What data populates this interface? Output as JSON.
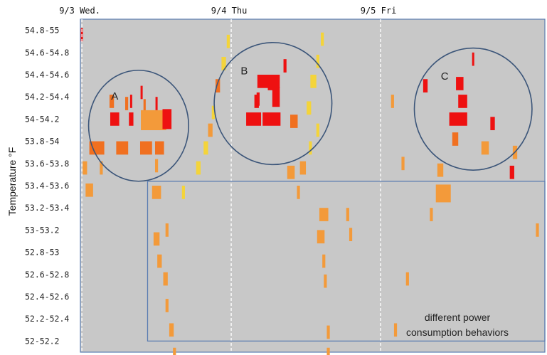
{
  "chart_data": {
    "type": "heatmap",
    "ylabel": "Temperature °F",
    "y_categories": [
      "54.8-55",
      "54.6-54.8",
      "54.4-54.6",
      "54.2-54.4",
      "54-54.2",
      "53.8-54",
      "53.6-53.8",
      "53.4-53.6",
      "53.2-53.4",
      "53-53.2",
      "52.8-53",
      "52.6-52.8",
      "52.4-52.6",
      "52.2-52.4",
      "52-52.2"
    ],
    "day_markers": [
      {
        "label": "9/3  Wed.",
        "day": 0
      },
      {
        "label": "9/4 Thu",
        "day": 1
      },
      {
        "label": "9/5 Fri",
        "day": 2
      }
    ],
    "x_range_days": [
      -0.01,
      3.1
    ],
    "colors": {
      "background": "#c8c8c8",
      "frame": "#5b7db1",
      "high": "#ee1111",
      "mid": "#f07020",
      "low": "#f39a3a",
      "faint": "#f4d43a",
      "ellipse": "#3b5579"
    },
    "clusters": [
      {
        "id": "A",
        "label": "A",
        "center_day": 0.38,
        "center_row": 4.3,
        "ry_rows": 2.5,
        "rx_days": 0.335
      },
      {
        "id": "B",
        "label": "B",
        "center_day": 1.28,
        "center_row": 3.3,
        "ry_rows": 2.75,
        "rx_days": 0.394
      },
      {
        "id": "C",
        "label": "C",
        "center_day": 2.62,
        "center_row": 3.55,
        "ry_rows": 2.75,
        "rx_days": 0.394
      }
    ],
    "annotation_box": {
      "text_line1": "different power",
      "text_line2": "consumption behaviors",
      "from_day": 0.44,
      "to_day": 3.1,
      "from_row": 7.3,
      "to_row": 14.5
    },
    "cells": [
      {
        "day": 0.0,
        "row": 0.2,
        "w": 0.006,
        "level": "high"
      },
      {
        "day": 0.33,
        "row": 3.2,
        "w": 0.01,
        "level": "high"
      },
      {
        "day": 0.4,
        "row": 2.8,
        "w": 0.008,
        "level": "high"
      },
      {
        "day": 0.5,
        "row": 3.3,
        "w": 0.012,
        "level": "high"
      },
      {
        "day": 0.2,
        "row": 3.2,
        "w": 0.03,
        "level": "mid"
      },
      {
        "day": 0.3,
        "row": 3.3,
        "w": 0.02,
        "level": "mid"
      },
      {
        "day": 0.42,
        "row": 3.4,
        "w": 0.015,
        "level": "mid"
      },
      {
        "day": 0.22,
        "row": 4.0,
        "w": 0.06,
        "level": "high"
      },
      {
        "day": 0.33,
        "row": 4.0,
        "w": 0.03,
        "level": "high"
      },
      {
        "day": 0.48,
        "row": 4.05,
        "w": 0.17,
        "rh": 0.9,
        "level": "low"
      },
      {
        "day": 0.57,
        "row": 4.0,
        "w": 0.06,
        "rh": 0.9,
        "level": "high"
      },
      {
        "day": 0.1,
        "row": 5.3,
        "w": 0.1,
        "level": "mid"
      },
      {
        "day": 0.27,
        "row": 5.3,
        "w": 0.08,
        "level": "mid"
      },
      {
        "day": 0.43,
        "row": 5.3,
        "w": 0.08,
        "level": "mid"
      },
      {
        "day": 0.52,
        "row": 5.3,
        "w": 0.06,
        "level": "mid"
      },
      {
        "day": 0.02,
        "row": 6.2,
        "w": 0.03,
        "level": "low"
      },
      {
        "day": 0.13,
        "row": 6.2,
        "w": 0.02,
        "level": "low"
      },
      {
        "day": 0.05,
        "row": 7.2,
        "w": 0.05,
        "level": "low"
      },
      {
        "day": 0.5,
        "row": 6.1,
        "w": 0.02,
        "level": "low"
      },
      {
        "day": 0.68,
        "row": 7.3,
        "w": 0.02,
        "level": "faint"
      },
      {
        "day": 0.78,
        "row": 6.2,
        "w": 0.03,
        "level": "faint"
      },
      {
        "day": 0.83,
        "row": 5.3,
        "w": 0.03,
        "level": "faint"
      },
      {
        "day": 0.86,
        "row": 4.5,
        "w": 0.03,
        "level": "low"
      },
      {
        "day": 0.88,
        "row": 3.7,
        "w": 0.02,
        "level": "faint"
      },
      {
        "day": 0.91,
        "row": 2.5,
        "w": 0.03,
        "level": "mid"
      },
      {
        "day": 0.95,
        "row": 1.5,
        "w": 0.03,
        "level": "faint"
      },
      {
        "day": 0.98,
        "row": 0.5,
        "w": 0.02,
        "level": "faint"
      },
      {
        "day": 1.17,
        "row": 3.2,
        "w": 0.03,
        "level": "high"
      },
      {
        "day": 1.27,
        "row": 2.4,
        "w": 0.05,
        "level": "high"
      },
      {
        "day": 1.36,
        "row": 1.6,
        "w": 0.02,
        "level": "high"
      },
      {
        "day": 1.15,
        "row": 4.0,
        "w": 0.1,
        "level": "high"
      },
      {
        "day": 1.27,
        "row": 4.0,
        "w": 0.12,
        "level": "high"
      },
      {
        "day": 1.42,
        "row": 4.1,
        "w": 0.05,
        "level": "mid"
      },
      {
        "day": 1.18,
        "row": 3.1,
        "w": 0.02,
        "level": "high"
      },
      {
        "day": 1.3,
        "row": 3.0,
        "w": 0.05,
        "rh": 0.9,
        "level": "high"
      },
      {
        "day": 1.25,
        "row": 2.3,
        "w": 0.15,
        "level": "high"
      },
      {
        "day": 1.52,
        "row": 3.5,
        "w": 0.03,
        "level": "faint"
      },
      {
        "day": 1.55,
        "row": 2.3,
        "w": 0.04,
        "level": "faint"
      },
      {
        "day": 1.58,
        "row": 1.4,
        "w": 0.02,
        "level": "faint"
      },
      {
        "day": 1.61,
        "row": 0.4,
        "w": 0.02,
        "level": "faint"
      },
      {
        "day": 1.58,
        "row": 4.5,
        "w": 0.02,
        "level": "faint"
      },
      {
        "day": 1.53,
        "row": 5.3,
        "w": 0.02,
        "level": "faint"
      },
      {
        "day": 1.4,
        "row": 6.4,
        "w": 0.05,
        "level": "low"
      },
      {
        "day": 1.45,
        "row": 7.3,
        "w": 0.02,
        "level": "low"
      },
      {
        "day": 1.48,
        "row": 6.2,
        "w": 0.04,
        "level": "low"
      },
      {
        "day": 2.08,
        "row": 3.2,
        "w": 0.02,
        "level": "low"
      },
      {
        "day": 2.3,
        "row": 2.5,
        "w": 0.03,
        "level": "high"
      },
      {
        "day": 2.53,
        "row": 2.4,
        "w": 0.05,
        "level": "high"
      },
      {
        "day": 2.55,
        "row": 3.2,
        "w": 0.06,
        "level": "high"
      },
      {
        "day": 2.52,
        "row": 4.0,
        "w": 0.12,
        "level": "high"
      },
      {
        "day": 2.62,
        "row": 1.3,
        "w": 0.01,
        "level": "high"
      },
      {
        "day": 2.5,
        "row": 4.9,
        "w": 0.04,
        "level": "mid"
      },
      {
        "day": 2.7,
        "row": 5.3,
        "w": 0.05,
        "level": "low"
      },
      {
        "day": 2.75,
        "row": 4.2,
        "w": 0.03,
        "level": "high"
      },
      {
        "day": 2.4,
        "row": 6.3,
        "w": 0.04,
        "level": "low"
      },
      {
        "day": 2.42,
        "row": 7.35,
        "w": 0.1,
        "rh": 0.8,
        "level": "low"
      },
      {
        "day": 2.15,
        "row": 6.0,
        "w": 0.02,
        "level": "low"
      },
      {
        "day": 2.88,
        "row": 6.4,
        "w": 0.03,
        "level": "high"
      },
      {
        "day": 2.9,
        "row": 5.5,
        "w": 0.03,
        "level": "low"
      },
      {
        "day": 3.05,
        "row": 9.0,
        "w": 0.02,
        "level": "low"
      },
      {
        "day": 2.34,
        "row": 8.3,
        "w": 0.02,
        "level": "low"
      },
      {
        "day": 2.18,
        "row": 11.2,
        "w": 0.02,
        "level": "low"
      },
      {
        "day": 2.1,
        "row": 13.5,
        "w": 0.02,
        "level": "low"
      },
      {
        "day": 0.5,
        "row": 7.3,
        "w": 0.06,
        "level": "low"
      },
      {
        "day": 0.5,
        "row": 9.4,
        "w": 0.04,
        "level": "low"
      },
      {
        "day": 0.57,
        "row": 9.0,
        "w": 0.02,
        "level": "low"
      },
      {
        "day": 0.52,
        "row": 10.4,
        "w": 0.03,
        "level": "low"
      },
      {
        "day": 0.56,
        "row": 11.2,
        "w": 0.03,
        "level": "low"
      },
      {
        "day": 0.57,
        "row": 12.4,
        "w": 0.02,
        "level": "low"
      },
      {
        "day": 0.6,
        "row": 13.5,
        "w": 0.03,
        "level": "low"
      },
      {
        "day": 0.62,
        "row": 14.6,
        "w": 0.02,
        "level": "low"
      },
      {
        "day": 1.62,
        "row": 8.3,
        "w": 0.06,
        "level": "low"
      },
      {
        "day": 1.6,
        "row": 9.3,
        "w": 0.05,
        "level": "low"
      },
      {
        "day": 1.62,
        "row": 10.4,
        "w": 0.02,
        "level": "low"
      },
      {
        "day": 1.63,
        "row": 11.3,
        "w": 0.02,
        "level": "low"
      },
      {
        "day": 1.65,
        "row": 13.6,
        "w": 0.02,
        "level": "low"
      },
      {
        "day": 1.65,
        "row": 14.6,
        "w": 0.02,
        "level": "low"
      },
      {
        "day": 1.78,
        "row": 8.3,
        "w": 0.02,
        "level": "low"
      },
      {
        "day": 1.8,
        "row": 9.2,
        "w": 0.02,
        "level": "low"
      }
    ]
  }
}
